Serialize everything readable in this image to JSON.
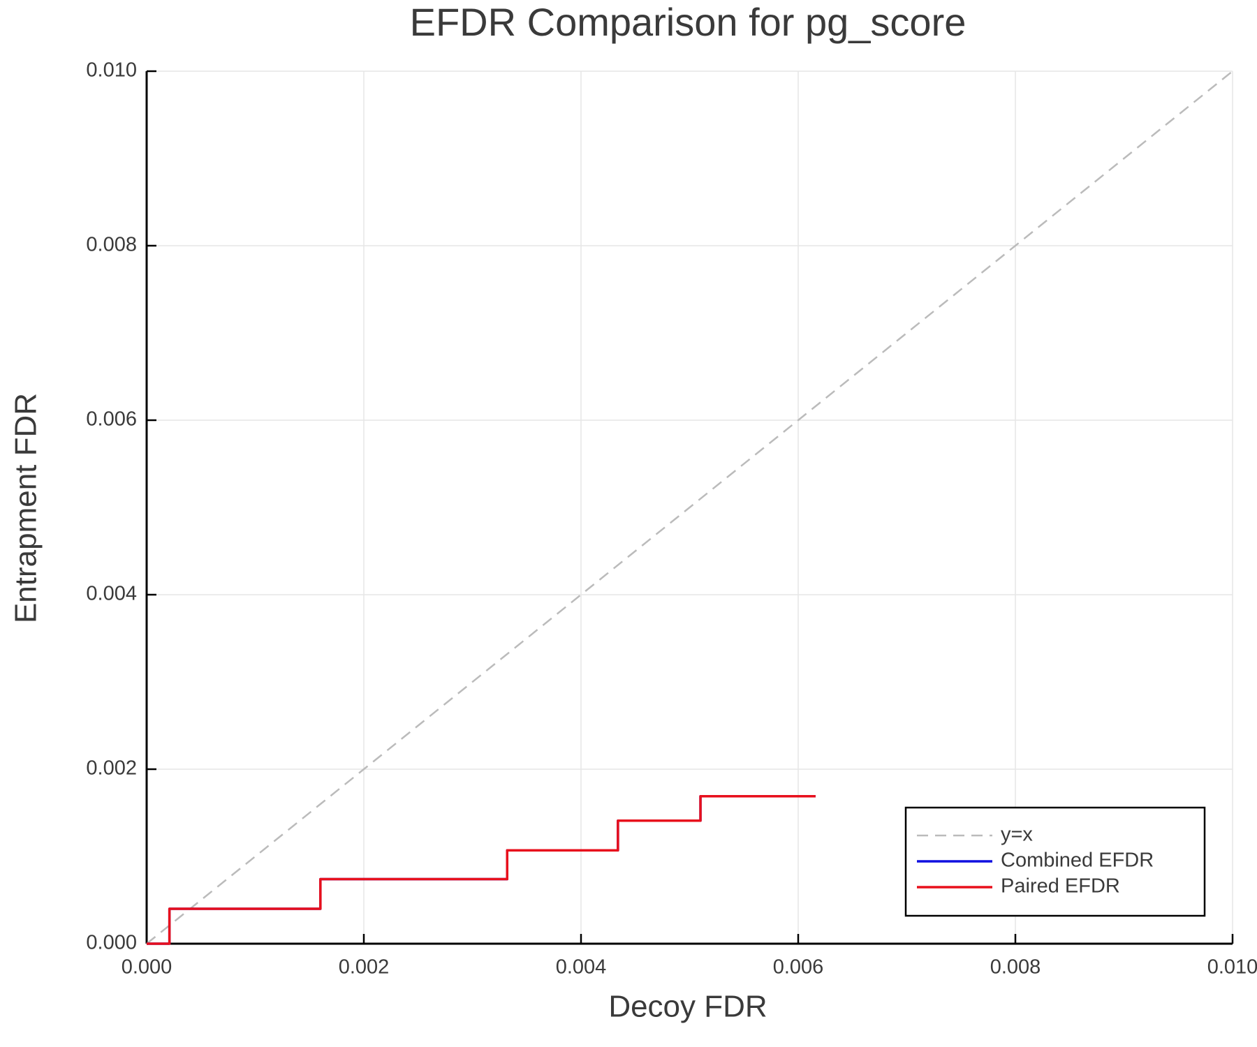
{
  "chart_data": {
    "type": "line",
    "title": "EFDR Comparison for pg_score",
    "x_label": "Decoy FDR",
    "y_label": "Entrapment FDR",
    "xlim": [
      0,
      0.01
    ],
    "ylim": [
      0,
      0.01
    ],
    "xticks": [
      {
        "value": 0,
        "label": "0.000"
      },
      {
        "value": 0.002,
        "label": "0.002"
      },
      {
        "value": 0.004,
        "label": "0.004"
      },
      {
        "value": 0.006,
        "label": "0.006"
      },
      {
        "value": 0.008,
        "label": "0.008"
      },
      {
        "value": 0.01,
        "label": "0.010"
      }
    ],
    "yticks": [
      {
        "value": 0,
        "label": "0.000"
      },
      {
        "value": 0.002,
        "label": "0.002"
      },
      {
        "value": 0.004,
        "label": "0.004"
      },
      {
        "value": 0.006,
        "label": "0.006"
      },
      {
        "value": 0.008,
        "label": "0.008"
      },
      {
        "value": 0.01,
        "label": "0.010"
      }
    ],
    "grid": true,
    "legend": "lower right",
    "series": [
      {
        "name": "y=x",
        "color": "#bbbbbb",
        "dashed": true,
        "x": [
          0,
          0.01
        ],
        "values": [
          0,
          0.01
        ]
      },
      {
        "name": "Combined EFDR",
        "color": "#1010e0",
        "dashed": false,
        "x": [
          0,
          0.00021,
          0.00021,
          0.0016,
          0.0016,
          0.00332,
          0.00332,
          0.00434,
          0.00434,
          0.0051,
          0.0051,
          0.00616
        ],
        "values": [
          0,
          0,
          0.0004,
          0.0004,
          0.00074,
          0.00074,
          0.00107,
          0.00107,
          0.00141,
          0.00141,
          0.00169,
          0.00169
        ]
      },
      {
        "name": "Paired EFDR",
        "color": "#e8101c",
        "dashed": false,
        "x": [
          0,
          0.00021,
          0.00021,
          0.0016,
          0.0016,
          0.00332,
          0.00332,
          0.00434,
          0.00434,
          0.0051,
          0.0051,
          0.00616
        ],
        "values": [
          0,
          0,
          0.0004,
          0.0004,
          0.00074,
          0.00074,
          0.00107,
          0.00107,
          0.00141,
          0.00141,
          0.00169,
          0.00169
        ]
      }
    ]
  }
}
